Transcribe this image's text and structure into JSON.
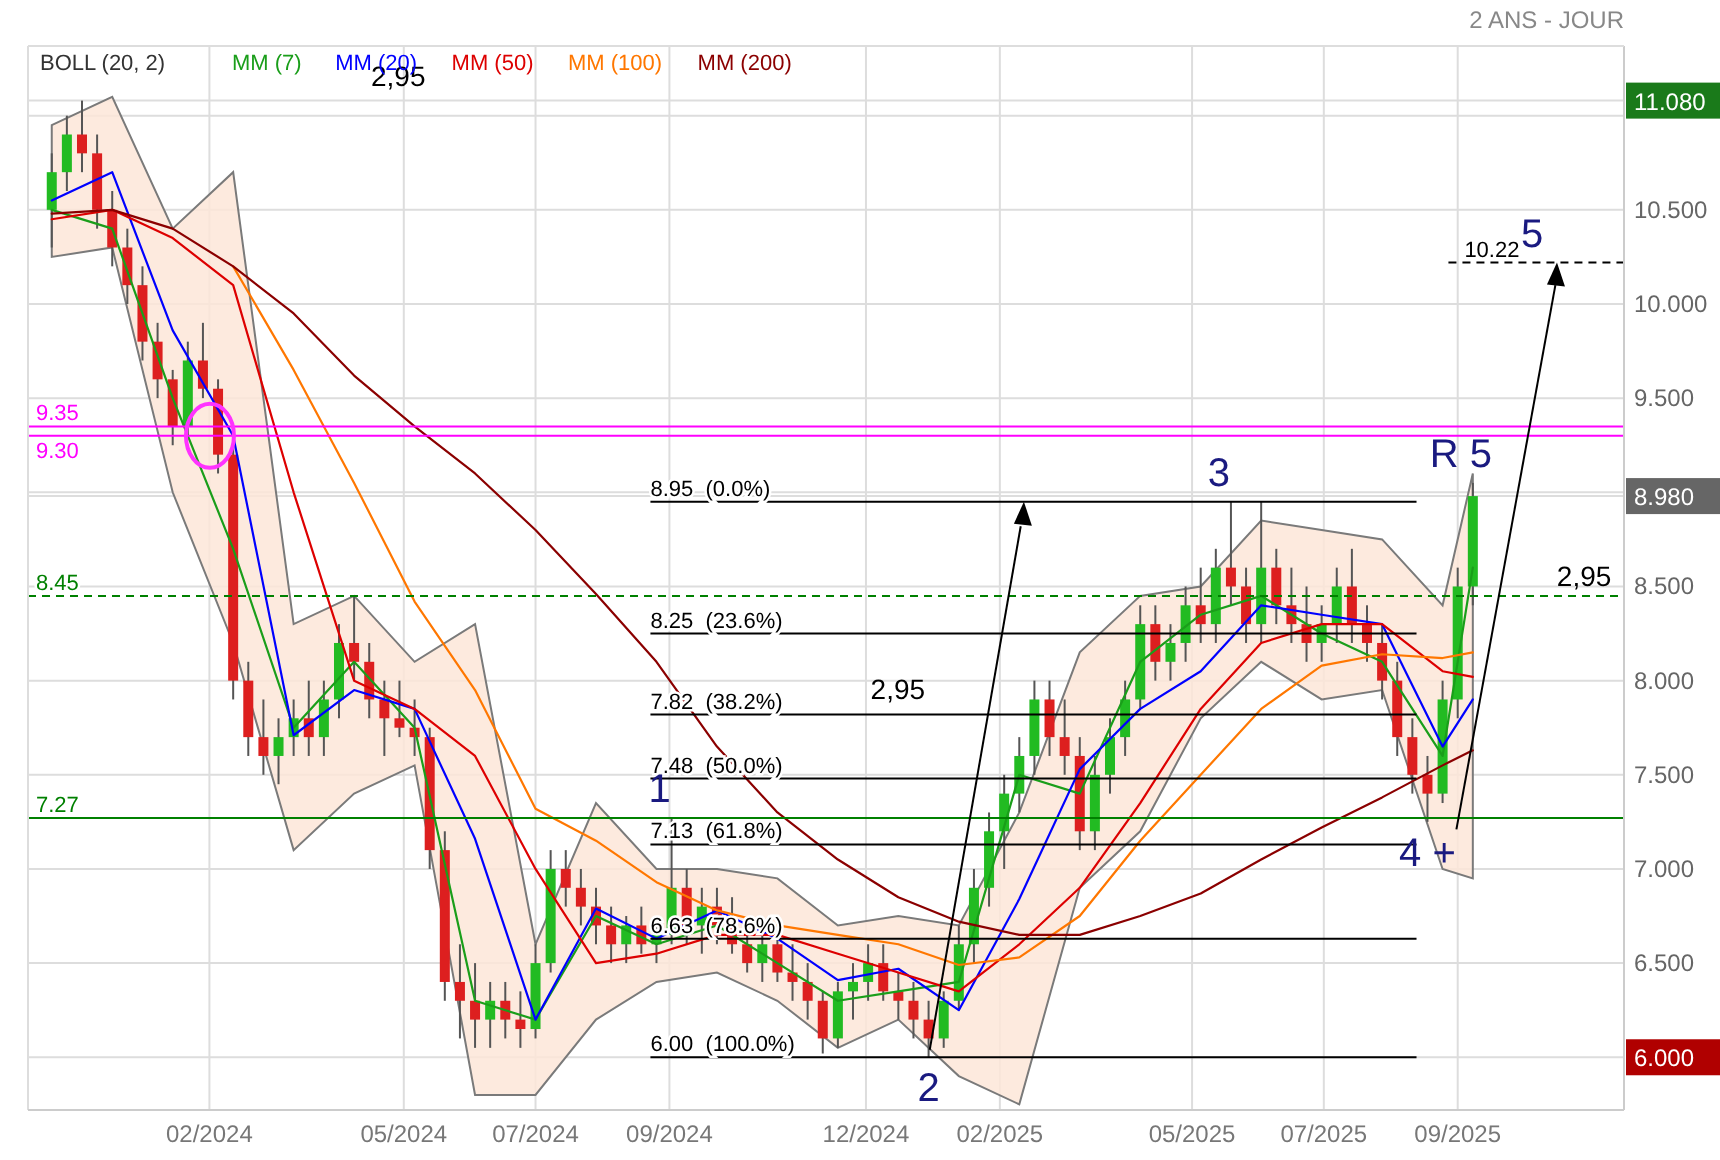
{
  "chart_data": {
    "type": "candlestick",
    "subtitle": "2 ANS - JOUR",
    "legend_title": "BOLL (20, 2)",
    "legend": "top left",
    "grid": true,
    "xlim": [
      "2023-11-09",
      "2025-11-17"
    ],
    "xticks": [
      {
        "value": "2024-02-01",
        "label": "02/2024"
      },
      {
        "value": "2024-05-01",
        "label": "05/2024"
      },
      {
        "value": "2024-07-01",
        "label": "07/2024"
      },
      {
        "value": "2024-09-01",
        "label": "09/2024"
      },
      {
        "value": "2024-12-01",
        "label": "12/2024"
      },
      {
        "value": "2025-02-01",
        "label": "02/2025"
      },
      {
        "value": "2025-05-01",
        "label": "05/2025"
      },
      {
        "value": "2025-07-01",
        "label": "07/2025"
      },
      {
        "value": "2025-09-01",
        "label": "09/2025"
      }
    ],
    "ylim": [
      5.72,
      11.37
    ],
    "yticks": [
      {
        "value": 6,
        "label": "6.000"
      },
      {
        "value": 6.5,
        "label": "6.500"
      },
      {
        "value": 7,
        "label": "7.000"
      },
      {
        "value": 7.5,
        "label": "7.500"
      },
      {
        "value": 8,
        "label": "8.000"
      },
      {
        "value": 8.5,
        "label": "8.500"
      },
      {
        "value": 8.98,
        "label": "8.980"
      },
      {
        "value": 9,
        "label": null
      },
      {
        "value": 9.5,
        "label": "9.500"
      },
      {
        "value": 10,
        "label": "10.000"
      },
      {
        "value": 10.5,
        "label": "10.500"
      },
      {
        "value": 11,
        "label": null
      },
      {
        "value": 11.08,
        "label": "11.080"
      }
    ],
    "x": [
      "2023-11-20",
      "2023-11-27",
      "2023-12-04",
      "2023-12-11",
      "2023-12-18",
      "2023-12-25",
      "2024-01-01",
      "2024-01-08",
      "2024-01-15",
      "2024-01-22",
      "2024-01-29",
      "2024-02-05",
      "2024-02-12",
      "2024-02-19",
      "2024-02-26",
      "2024-03-04",
      "2024-03-11",
      "2024-03-18",
      "2024-03-25",
      "2024-04-01",
      "2024-04-08",
      "2024-04-15",
      "2024-04-22",
      "2024-04-29",
      "2024-05-06",
      "2024-05-13",
      "2024-05-20",
      "2024-05-27",
      "2024-06-03",
      "2024-06-10",
      "2024-06-17",
      "2024-06-24",
      "2024-07-01",
      "2024-07-08",
      "2024-07-15",
      "2024-07-22",
      "2024-07-29",
      "2024-08-05",
      "2024-08-12",
      "2024-08-19",
      "2024-08-26",
      "2024-09-02",
      "2024-09-09",
      "2024-09-16",
      "2024-09-23",
      "2024-09-30",
      "2024-10-07",
      "2024-10-14",
      "2024-10-21",
      "2024-10-28",
      "2024-11-04",
      "2024-11-11",
      "2024-11-18",
      "2024-11-25",
      "2024-12-02",
      "2024-12-09",
      "2024-12-16",
      "2024-12-23",
      "2024-12-30",
      "2025-01-06",
      "2025-01-13",
      "2025-01-20",
      "2025-01-27",
      "2025-02-03",
      "2025-02-10",
      "2025-02-17",
      "2025-02-24",
      "2025-03-03",
      "2025-03-10",
      "2025-03-17",
      "2025-03-24",
      "2025-03-31",
      "2025-04-07",
      "2025-04-14",
      "2025-04-21",
      "2025-04-28",
      "2025-05-05",
      "2025-05-12",
      "2025-05-19",
      "2025-05-26",
      "2025-06-02",
      "2025-06-09",
      "2025-06-16",
      "2025-06-23",
      "2025-06-30",
      "2025-07-07",
      "2025-07-14",
      "2025-07-21",
      "2025-07-28",
      "2025-08-04",
      "2025-08-11",
      "2025-08-18",
      "2025-08-25",
      "2025-09-01",
      "2025-09-08"
    ],
    "ohlc": [
      [
        10.5,
        10.8,
        10.3,
        10.7
      ],
      [
        10.7,
        11.0,
        10.6,
        10.9
      ],
      [
        10.9,
        11.08,
        10.7,
        10.8
      ],
      [
        10.8,
        10.9,
        10.4,
        10.5
      ],
      [
        10.5,
        10.6,
        10.2,
        10.3
      ],
      [
        10.3,
        10.4,
        10.0,
        10.1
      ],
      [
        10.1,
        10.2,
        9.7,
        9.8
      ],
      [
        9.8,
        9.9,
        9.5,
        9.6
      ],
      [
        9.6,
        9.65,
        9.25,
        9.35
      ],
      [
        9.35,
        9.8,
        9.3,
        9.7
      ],
      [
        9.7,
        9.9,
        9.5,
        9.55
      ],
      [
        9.55,
        9.6,
        9.1,
        9.2
      ],
      [
        9.2,
        9.25,
        7.9,
        8.0
      ],
      [
        8.0,
        8.1,
        7.6,
        7.7
      ],
      [
        7.7,
        7.9,
        7.5,
        7.6
      ],
      [
        7.6,
        7.8,
        7.45,
        7.7
      ],
      [
        7.7,
        7.9,
        7.6,
        7.8
      ],
      [
        7.8,
        8.0,
        7.6,
        7.7
      ],
      [
        7.7,
        8.0,
        7.6,
        7.9
      ],
      [
        7.9,
        8.3,
        7.8,
        8.2
      ],
      [
        8.2,
        8.45,
        8.0,
        8.1
      ],
      [
        8.1,
        8.2,
        7.8,
        7.9
      ],
      [
        7.9,
        8.0,
        7.6,
        7.8
      ],
      [
        7.8,
        8.0,
        7.7,
        7.75
      ],
      [
        7.75,
        7.9,
        7.6,
        7.7
      ],
      [
        7.7,
        7.75,
        7.0,
        7.1
      ],
      [
        7.1,
        7.2,
        6.3,
        6.4
      ],
      [
        6.4,
        6.6,
        6.1,
        6.3
      ],
      [
        6.3,
        6.5,
        6.05,
        6.2
      ],
      [
        6.2,
        6.4,
        6.05,
        6.3
      ],
      [
        6.3,
        6.4,
        6.1,
        6.2
      ],
      [
        6.2,
        6.35,
        6.05,
        6.15
      ],
      [
        6.15,
        6.6,
        6.1,
        6.5
      ],
      [
        6.5,
        7.1,
        6.45,
        7.0
      ],
      [
        7.0,
        7.1,
        6.8,
        6.9
      ],
      [
        6.9,
        7.0,
        6.7,
        6.8
      ],
      [
        6.8,
        6.9,
        6.6,
        6.7
      ],
      [
        6.7,
        6.8,
        6.5,
        6.6
      ],
      [
        6.6,
        6.75,
        6.5,
        6.7
      ],
      [
        6.7,
        6.8,
        6.55,
        6.6
      ],
      [
        6.6,
        6.7,
        6.5,
        6.65
      ],
      [
        6.65,
        7.27,
        6.6,
        6.9
      ],
      [
        6.9,
        7.0,
        6.6,
        6.7
      ],
      [
        6.7,
        6.9,
        6.55,
        6.8
      ],
      [
        6.8,
        6.9,
        6.6,
        6.7
      ],
      [
        6.7,
        6.85,
        6.55,
        6.6
      ],
      [
        6.6,
        6.75,
        6.45,
        6.5
      ],
      [
        6.5,
        6.7,
        6.4,
        6.6
      ],
      [
        6.6,
        6.7,
        6.4,
        6.45
      ],
      [
        6.45,
        6.6,
        6.3,
        6.4
      ],
      [
        6.4,
        6.5,
        6.2,
        6.3
      ],
      [
        6.3,
        6.35,
        6.02,
        6.1
      ],
      [
        6.1,
        6.4,
        6.05,
        6.35
      ],
      [
        6.35,
        6.5,
        6.2,
        6.4
      ],
      [
        6.4,
        6.6,
        6.3,
        6.5
      ],
      [
        6.5,
        6.6,
        6.3,
        6.35
      ],
      [
        6.35,
        6.45,
        6.2,
        6.3
      ],
      [
        6.3,
        6.4,
        6.1,
        6.2
      ],
      [
        6.2,
        6.3,
        6.0,
        6.1
      ],
      [
        6.1,
        6.35,
        6.05,
        6.3
      ],
      [
        6.3,
        6.7,
        6.25,
        6.6
      ],
      [
        6.6,
        7.0,
        6.5,
        6.9
      ],
      [
        6.9,
        7.3,
        6.8,
        7.2
      ],
      [
        7.2,
        7.5,
        7.0,
        7.4
      ],
      [
        7.4,
        7.7,
        7.3,
        7.6
      ],
      [
        7.6,
        8.0,
        7.5,
        7.9
      ],
      [
        7.9,
        8.0,
        7.6,
        7.7
      ],
      [
        7.7,
        7.9,
        7.5,
        7.6
      ],
      [
        7.6,
        7.7,
        7.1,
        7.2
      ],
      [
        7.2,
        7.6,
        7.1,
        7.5
      ],
      [
        7.5,
        7.8,
        7.4,
        7.7
      ],
      [
        7.7,
        8.0,
        7.6,
        7.9
      ],
      [
        7.9,
        8.4,
        7.85,
        8.3
      ],
      [
        8.3,
        8.4,
        8.0,
        8.1
      ],
      [
        8.1,
        8.3,
        8.0,
        8.2
      ],
      [
        8.2,
        8.5,
        8.1,
        8.4
      ],
      [
        8.4,
        8.6,
        8.2,
        8.3
      ],
      [
        8.3,
        8.7,
        8.2,
        8.6
      ],
      [
        8.6,
        8.95,
        8.4,
        8.5
      ],
      [
        8.5,
        8.6,
        8.2,
        8.3
      ],
      [
        8.3,
        8.95,
        8.2,
        8.6
      ],
      [
        8.6,
        8.7,
        8.3,
        8.4
      ],
      [
        8.4,
        8.6,
        8.2,
        8.3
      ],
      [
        8.3,
        8.5,
        8.1,
        8.2
      ],
      [
        8.2,
        8.4,
        8.1,
        8.3
      ],
      [
        8.3,
        8.6,
        8.2,
        8.5
      ],
      [
        8.5,
        8.7,
        8.2,
        8.3
      ],
      [
        8.3,
        8.4,
        8.1,
        8.2
      ],
      [
        8.2,
        8.3,
        7.9,
        8.0
      ],
      [
        8.0,
        8.1,
        7.6,
        7.7
      ],
      [
        7.7,
        7.8,
        7.4,
        7.5
      ],
      [
        7.5,
        7.6,
        7.25,
        7.4
      ],
      [
        7.4,
        8.0,
        7.35,
        7.9
      ],
      [
        7.9,
        8.6,
        7.8,
        8.5
      ],
      [
        8.5,
        9.05,
        8.4,
        8.98
      ]
    ],
    "series": [
      {
        "name": "MM (7)",
        "type": "line",
        "color": "#1a9e1a",
        "x": [
          "2023-11-20",
          "2023-12-18",
          "2024-01-15",
          "2024-02-12",
          "2024-03-11",
          "2024-04-08",
          "2024-05-06",
          "2024-06-03",
          "2024-07-01",
          "2024-07-29",
          "2024-08-26",
          "2024-09-23",
          "2024-10-21",
          "2024-11-18",
          "2024-12-16",
          "2025-01-13",
          "2025-02-10",
          "2025-03-10",
          "2025-04-07",
          "2025-05-05",
          "2025-06-02",
          "2025-06-30",
          "2025-07-28",
          "2025-08-25",
          "2025-09-08"
        ],
        "values": [
          10.5,
          10.4,
          9.5,
          8.7,
          7.75,
          8.1,
          7.75,
          6.3,
          6.2,
          6.75,
          6.6,
          6.7,
          6.5,
          6.3,
          6.35,
          6.4,
          7.5,
          7.4,
          8.1,
          8.35,
          8.45,
          8.25,
          8.1,
          7.6,
          8.6
        ]
      },
      {
        "name": "MM (20)",
        "type": "line",
        "color": "#0000ff",
        "x": [
          "2023-11-20",
          "2023-12-18",
          "2024-01-15",
          "2024-02-12",
          "2024-03-11",
          "2024-04-08",
          "2024-05-06",
          "2024-06-03",
          "2024-07-01",
          "2024-07-29",
          "2024-08-26",
          "2024-09-23",
          "2024-10-21",
          "2024-11-18",
          "2024-12-16",
          "2025-01-13",
          "2025-02-10",
          "2025-03-10",
          "2025-04-07",
          "2025-05-05",
          "2025-06-02",
          "2025-06-30",
          "2025-07-28",
          "2025-08-25",
          "2025-09-08"
        ],
        "values": [
          10.55,
          10.7,
          9.86,
          9.3,
          7.71,
          7.95,
          7.85,
          7.16,
          6.2,
          6.79,
          6.63,
          6.78,
          6.63,
          6.41,
          6.47,
          6.25,
          6.84,
          7.53,
          7.85,
          8.05,
          8.4,
          8.35,
          8.3,
          7.65,
          7.9
        ],
        "lower": [
          10.25,
          10.3,
          9.0,
          8.2,
          7.1,
          7.4,
          7.55,
          5.8,
          5.8,
          6.2,
          6.4,
          6.45,
          6.3,
          6.05,
          6.2,
          5.9,
          5.75,
          6.9,
          7.2,
          7.8,
          8.1,
          7.9,
          7.95,
          7.0,
          6.95
        ],
        "upper": [
          10.95,
          11.1,
          10.4,
          10.7,
          8.3,
          8.45,
          8.1,
          8.3,
          6.6,
          7.35,
          7.0,
          7.0,
          6.95,
          6.7,
          6.75,
          6.7,
          7.3,
          8.15,
          8.45,
          8.5,
          8.85,
          8.8,
          8.75,
          8.4,
          9.1
        ]
      },
      {
        "name": "MM (50)",
        "type": "line",
        "color": "#dd0000",
        "x": [
          "2023-11-20",
          "2023-12-18",
          "2024-01-15",
          "2024-02-12",
          "2024-03-11",
          "2024-04-08",
          "2024-05-06",
          "2024-06-03",
          "2024-07-01",
          "2024-07-29",
          "2024-08-26",
          "2024-09-23",
          "2024-10-21",
          "2024-11-18",
          "2024-12-16",
          "2025-01-13",
          "2025-02-10",
          "2025-03-10",
          "2025-04-07",
          "2025-05-05",
          "2025-06-02",
          "2025-06-30",
          "2025-07-28",
          "2025-08-25",
          "2025-09-08"
        ],
        "values": [
          10.45,
          10.5,
          10.35,
          10.1,
          9.0,
          8.0,
          7.85,
          7.6,
          7.0,
          6.5,
          6.55,
          6.65,
          6.65,
          6.55,
          6.45,
          6.35,
          6.6,
          6.9,
          7.35,
          7.85,
          8.2,
          8.3,
          8.3,
          8.05,
          8.02
        ]
      },
      {
        "name": "MM (100)",
        "type": "line",
        "color": "#ff7700",
        "x": [
          "2024-02-12",
          "2024-03-11",
          "2024-04-08",
          "2024-05-06",
          "2024-06-03",
          "2024-07-01",
          "2024-07-29",
          "2024-08-26",
          "2024-09-23",
          "2024-10-21",
          "2024-11-18",
          "2024-12-16",
          "2025-01-13",
          "2025-02-10",
          "2025-03-10",
          "2025-04-07",
          "2025-05-05",
          "2025-06-02",
          "2025-06-30",
          "2025-07-28",
          "2025-08-25",
          "2025-09-08"
        ],
        "values": [
          10.2,
          9.65,
          9.05,
          8.42,
          7.95,
          7.32,
          7.15,
          6.93,
          6.78,
          6.7,
          6.65,
          6.6,
          6.49,
          6.53,
          6.75,
          7.15,
          7.5,
          7.85,
          8.08,
          8.14,
          8.12,
          8.15
        ]
      },
      {
        "name": "MM (200)",
        "type": "line",
        "color": "#8b0000",
        "x": [
          "2023-11-20",
          "2023-12-18",
          "2024-01-15",
          "2024-02-12",
          "2024-03-11",
          "2024-04-08",
          "2024-05-06",
          "2024-06-03",
          "2024-07-01",
          "2024-07-29",
          "2024-08-26",
          "2024-09-23",
          "2024-10-21",
          "2024-11-18",
          "2024-12-16",
          "2025-01-13",
          "2025-02-10",
          "2025-03-10",
          "2025-04-07",
          "2025-05-05",
          "2025-06-02",
          "2025-06-30",
          "2025-07-28",
          "2025-08-25",
          "2025-09-08"
        ],
        "values": [
          10.48,
          10.5,
          10.4,
          10.2,
          9.95,
          9.62,
          9.35,
          9.1,
          8.8,
          8.46,
          8.1,
          7.65,
          7.3,
          7.05,
          6.85,
          6.72,
          6.65,
          6.65,
          6.75,
          6.87,
          7.05,
          7.22,
          7.38,
          7.55,
          7.63
        ]
      }
    ],
    "ref_lines": [
      {
        "axis": "y",
        "value": 9.35,
        "label": "9.35",
        "color": "#ff00ff",
        "line_style": "solid"
      },
      {
        "axis": "y",
        "value": 9.3,
        "label": "9.30",
        "color": "#ff00ff",
        "line_style": "solid"
      },
      {
        "axis": "y",
        "value": 8.45,
        "label": "8.45",
        "color": "#008000",
        "line_style": "dashed"
      },
      {
        "axis": "y",
        "value": 7.27,
        "label": "7.27",
        "color": "#008000",
        "line_style": "solid"
      },
      {
        "axis": "y",
        "value": 8.95,
        "label": "8.95  (0.0%)",
        "color": "#000000",
        "line_style": "solid"
      },
      {
        "axis": "y",
        "value": 8.25,
        "label": "8.25  (23.6%)",
        "color": "#000000",
        "line_style": "solid"
      },
      {
        "axis": "y",
        "value": 7.82,
        "label": "7.82  (38.2%)",
        "color": "#000000",
        "line_style": "solid"
      },
      {
        "axis": "y",
        "value": 7.48,
        "label": "7.48  (50.0%)",
        "color": "#000000",
        "line_style": "solid"
      },
      {
        "axis": "y",
        "value": 7.13,
        "label": "7.13  (61.8%)",
        "color": "#000000",
        "line_style": "solid"
      },
      {
        "axis": "y",
        "value": 6.63,
        "label": "6.63  (78.6%)",
        "color": "#000000",
        "line_style": "solid"
      },
      {
        "axis": "y",
        "value": 6.0,
        "label": "6.00  (100.0%)",
        "color": "#000000",
        "line_style": "solid"
      },
      {
        "axis": "y",
        "value": 10.22,
        "label": "10.22",
        "color": "#000000",
        "line_style": "dashed"
      }
    ],
    "annotations": [
      {
        "text": "1",
        "x": "2024-09-02",
        "y": 7.27
      },
      {
        "text": "2",
        "x": "2024-12-30",
        "y": 6.0
      },
      {
        "text": "3",
        "x": "2025-05-19",
        "y": 8.95
      },
      {
        "text": "4 +",
        "x": "2025-08-18",
        "y": 7.25
      },
      {
        "text": "R 5",
        "x": "2025-09-08",
        "y": 9.05
      },
      {
        "text": "5",
        "x": "2025-10-11",
        "y": 10.22
      },
      "2,95",
      "2,95",
      "2,95"
    ]
  }
}
